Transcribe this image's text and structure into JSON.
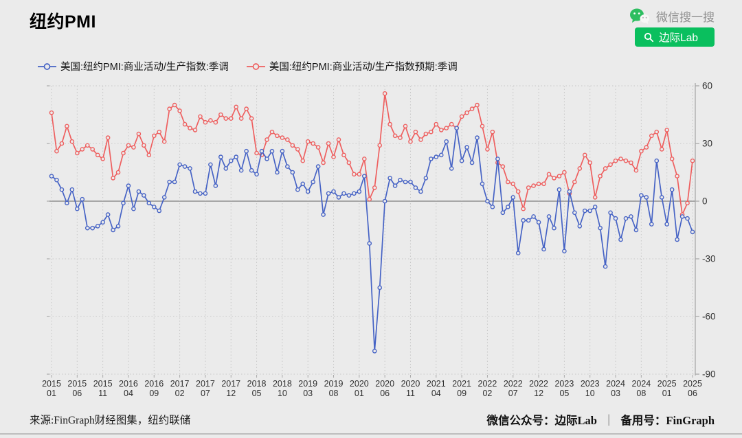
{
  "header": {
    "title": "纽约PMI"
  },
  "wechat": {
    "search_label": "微信搜一搜",
    "button_label": "边际Lab",
    "brand_green": "#0abf5e"
  },
  "legend": {
    "items": [
      {
        "label": "美国:纽约PMI:商业活动/生产指数:季调",
        "color": "#4663c5"
      },
      {
        "label": "美国:纽约PMI:商业活动/生产指数预期:季调",
        "color": "#ee5f5f"
      }
    ]
  },
  "footer": {
    "source": "来源:FinGraph财经图集，纽约联储",
    "account": "微信公众号：边际Lab",
    "separator": "｜",
    "backup": "备用号：FinGraph"
  },
  "chart_data": {
    "type": "line",
    "title": "纽约PMI",
    "xlabel": "",
    "ylabel": "",
    "ylim": [
      -90,
      60
    ],
    "y_ticks": [
      60,
      30,
      0,
      -30,
      -60,
      -90
    ],
    "xtick_every": 5,
    "grid": true,
    "zero_line": true,
    "marker": "open-circle",
    "legend_position": "top-left",
    "background": "#ebebeb",
    "x": [
      "2015-01",
      "2015-02",
      "2015-03",
      "2015-04",
      "2015-05",
      "2015-06",
      "2015-07",
      "2015-08",
      "2015-09",
      "2015-10",
      "2015-11",
      "2015-12",
      "2016-01",
      "2016-02",
      "2016-03",
      "2016-04",
      "2016-05",
      "2016-06",
      "2016-07",
      "2016-08",
      "2016-09",
      "2016-10",
      "2016-11",
      "2016-12",
      "2017-01",
      "2017-02",
      "2017-03",
      "2017-04",
      "2017-05",
      "2017-06",
      "2017-07",
      "2017-08",
      "2017-09",
      "2017-10",
      "2017-11",
      "2017-12",
      "2018-01",
      "2018-02",
      "2018-03",
      "2018-04",
      "2018-05",
      "2018-06",
      "2018-07",
      "2018-08",
      "2018-09",
      "2018-10",
      "2018-11",
      "2018-12",
      "2019-01",
      "2019-02",
      "2019-03",
      "2019-04",
      "2019-05",
      "2019-06",
      "2019-07",
      "2019-08",
      "2019-09",
      "2019-10",
      "2019-11",
      "2019-12",
      "2020-01",
      "2020-02",
      "2020-03",
      "2020-04",
      "2020-05",
      "2020-06",
      "2020-07",
      "2020-08",
      "2020-09",
      "2020-10",
      "2020-11",
      "2020-12",
      "2021-01",
      "2021-02",
      "2021-03",
      "2021-04",
      "2021-05",
      "2021-06",
      "2021-07",
      "2021-08",
      "2021-09",
      "2021-10",
      "2021-11",
      "2021-12",
      "2022-01",
      "2022-02",
      "2022-03",
      "2022-04",
      "2022-05",
      "2022-06",
      "2022-07",
      "2022-08",
      "2022-09",
      "2022-10",
      "2022-11",
      "2022-12",
      "2023-01",
      "2023-02",
      "2023-03",
      "2023-04",
      "2023-05",
      "2023-06",
      "2023-07",
      "2023-08",
      "2023-09",
      "2023-10",
      "2023-11",
      "2023-12",
      "2024-01",
      "2024-02",
      "2024-03",
      "2024-04",
      "2024-05",
      "2024-06",
      "2024-07",
      "2024-08",
      "2024-09",
      "2024-10",
      "2024-11",
      "2024-12",
      "2025-01",
      "2025-02",
      "2025-03",
      "2025-04",
      "2025-05",
      "2025-06"
    ],
    "series": [
      {
        "name": "美国:纽约PMI:商业活动/生产指数:季调",
        "color": "#4663c5",
        "values": [
          13,
          11,
          6,
          -1,
          6,
          -4,
          1,
          -14,
          -14,
          -13,
          -11,
          -7,
          -15,
          -13,
          -1,
          8,
          -4,
          5,
          3,
          -1,
          -3,
          -5,
          2,
          10,
          10,
          19,
          18,
          17,
          5,
          4,
          4,
          19,
          8,
          23,
          17,
          21,
          23,
          16,
          26,
          16,
          14,
          26,
          22,
          26,
          15,
          26,
          18,
          15,
          6,
          9,
          5,
          10,
          18,
          -7,
          4,
          5,
          2,
          4,
          3,
          4,
          5,
          13,
          -22,
          -78,
          -45,
          0,
          12,
          8,
          11,
          10,
          10,
          7,
          5,
          12,
          22,
          23,
          24,
          31,
          17,
          38,
          21,
          28,
          20,
          33,
          9,
          0,
          -3,
          22,
          -6,
          -3,
          2,
          -27,
          -10,
          -10,
          -8,
          -11,
          -25,
          -8,
          -14,
          6,
          -26,
          5,
          -6,
          -13,
          -5,
          -5,
          -3,
          -14,
          -34,
          -6,
          -9,
          -20,
          -9,
          -8,
          -15,
          3,
          2,
          -12,
          21,
          2,
          -12,
          6,
          -20,
          -8,
          -9,
          -16
        ]
      },
      {
        "name": "美国:纽约PMI:商业活动/生产指数预期:季调",
        "color": "#ee5f5f",
        "values": [
          46,
          26,
          30,
          39,
          31,
          25,
          27,
          29,
          27,
          24,
          22,
          33,
          12,
          15,
          25,
          29,
          28,
          35,
          29,
          24,
          34,
          36,
          31,
          48,
          50,
          47,
          40,
          38,
          37,
          44,
          41,
          42,
          41,
          45,
          43,
          43,
          49,
          43,
          48,
          43,
          25,
          24,
          32,
          36,
          34,
          33,
          32,
          29,
          27,
          21,
          31,
          30,
          28,
          20,
          30,
          23,
          32,
          24,
          20,
          14,
          14,
          22,
          1,
          7,
          29,
          56,
          40,
          34,
          33,
          39,
          31,
          36,
          32,
          35,
          36,
          40,
          37,
          38,
          40,
          38,
          44,
          46,
          48,
          50,
          39,
          27,
          36,
          20,
          18,
          10,
          9,
          5,
          -4,
          7,
          8,
          9,
          9,
          14,
          12,
          13,
          15,
          4,
          10,
          17,
          24,
          20,
          2,
          13,
          17,
          19,
          21,
          22,
          21,
          20,
          16,
          26,
          28,
          34,
          36,
          27,
          37,
          22,
          13,
          -7,
          -1,
          21
        ]
      }
    ]
  }
}
